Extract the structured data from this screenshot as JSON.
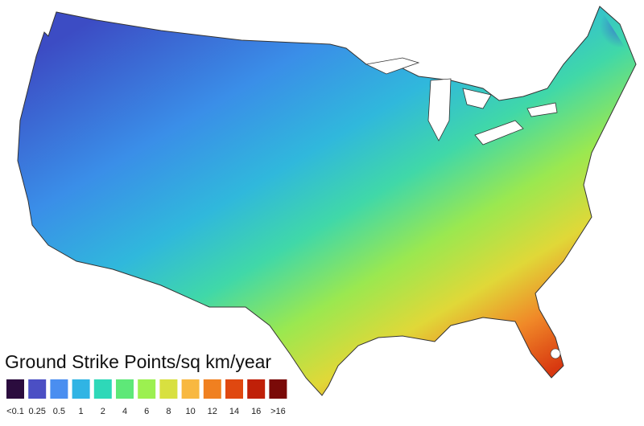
{
  "legend": {
    "title": "Ground Strike Points/sq km/year",
    "items": [
      {
        "label": "<0.1",
        "color": "#2b0c3e"
      },
      {
        "label": "0.25",
        "color": "#4b4fc4"
      },
      {
        "label": "0.5",
        "color": "#4a8ef0"
      },
      {
        "label": "1",
        "color": "#30b4e4"
      },
      {
        "label": "2",
        "color": "#2ed8b8"
      },
      {
        "label": "4",
        "color": "#5ee878"
      },
      {
        "label": "6",
        "color": "#9cf050"
      },
      {
        "label": "8",
        "color": "#d8e040"
      },
      {
        "label": "10",
        "color": "#f8b840"
      },
      {
        "label": "12",
        "color": "#f08020"
      },
      {
        "label": "14",
        "color": "#e04810"
      },
      {
        "label": "16",
        "color": "#c02008"
      },
      {
        "label": ">16",
        "color": "#7a0a08"
      }
    ]
  }
}
